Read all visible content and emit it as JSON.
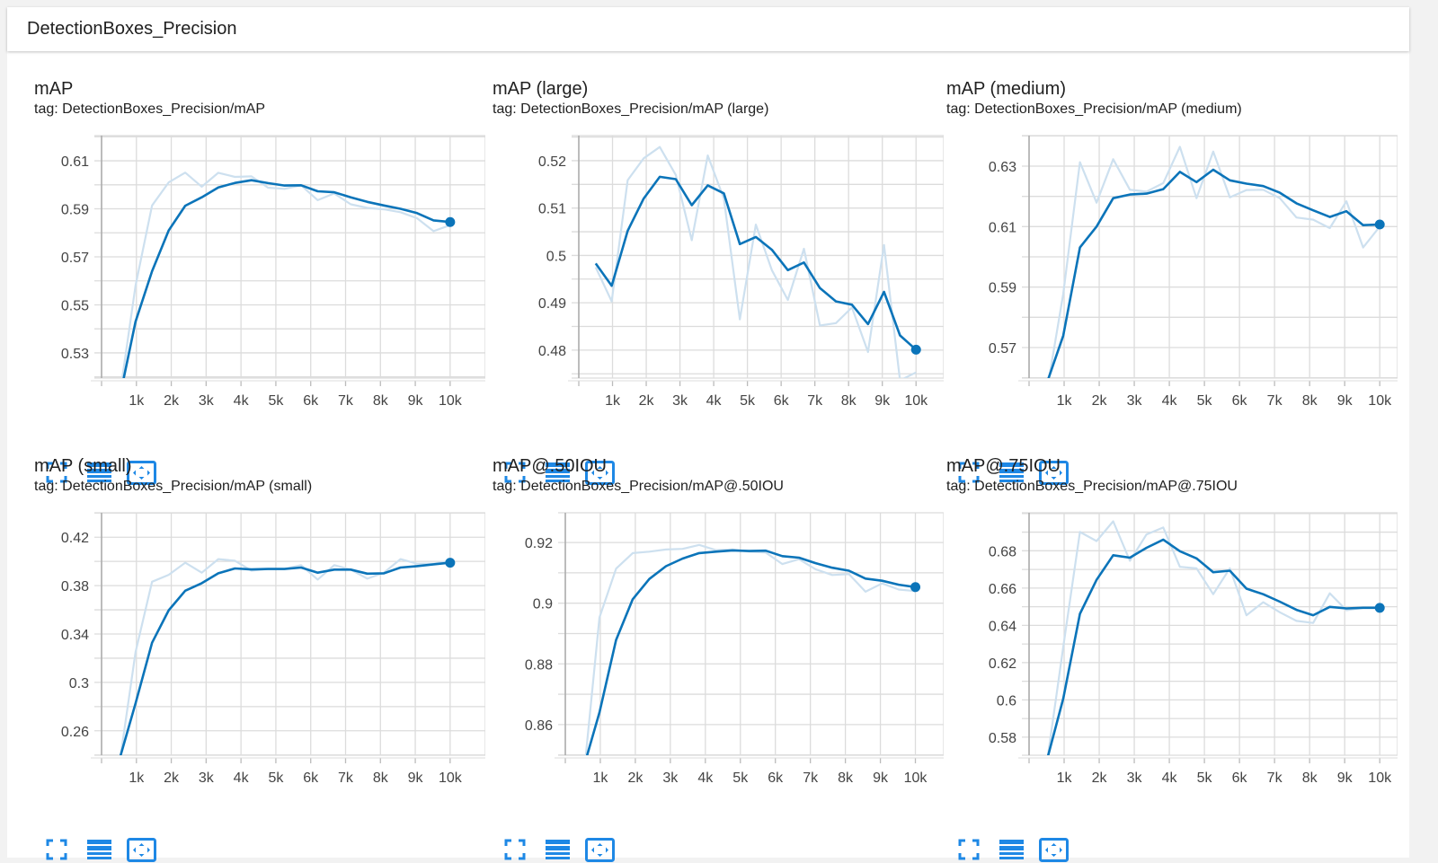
{
  "header": {
    "title": "DetectionBoxes_Precision"
  },
  "colors": {
    "smoothed": "#0b74b9",
    "raw": "#cde0ef",
    "grid": "#dcdcdc",
    "icon": "#1e88e5"
  },
  "icons": [
    "fullscreen-icon",
    "data-table-icon",
    "fit-domain-icon"
  ],
  "chart_data": [
    {
      "type": "line",
      "title": "mAP",
      "tag": "tag: DetectionBoxes_Precision/mAP",
      "x": [
        500,
        975,
        1450,
        1925,
        2400,
        2875,
        3350,
        3825,
        4300,
        4775,
        5250,
        5725,
        6200,
        6675,
        7150,
        7625,
        8100,
        8575,
        9050,
        9525,
        10000
      ],
      "xlim": [
        0,
        10700
      ],
      "ylim": [
        0.5195,
        0.6205
      ],
      "grid_step": 0.01,
      "grid": true,
      "yticks": [
        0.53,
        0.55,
        0.57,
        0.59,
        0.61
      ],
      "ytick_labels": [
        "0.53",
        "0.55",
        "0.57",
        "0.59",
        "0.61"
      ],
      "xticks": [
        1000,
        2000,
        3000,
        4000,
        5000,
        6000,
        7000,
        8000,
        9000,
        10000
      ],
      "xtick_labels": [
        "1k",
        "2k",
        "3k",
        "4k",
        "5k",
        "6k",
        "7k",
        "8k",
        "9k",
        "10k"
      ],
      "series": [
        {
          "role": "raw",
          "values": [
            0.51,
            0.558,
            0.5914,
            0.601,
            0.6051,
            0.5992,
            0.605,
            0.6033,
            0.6035,
            0.5988,
            0.5983,
            0.5998,
            0.5936,
            0.5964,
            0.5919,
            0.5904,
            0.5898,
            0.5886,
            0.5861,
            0.5807,
            0.5832
          ]
        },
        {
          "role": "smoothed",
          "values": [
            0.51,
            0.543,
            0.564,
            0.581,
            0.5913,
            0.5948,
            0.5989,
            0.6008,
            0.6019,
            0.6007,
            0.5997,
            0.5998,
            0.5973,
            0.5969,
            0.5948,
            0.5929,
            0.5914,
            0.59,
            0.5882,
            0.5852,
            0.5845
          ]
        }
      ]
    },
    {
      "type": "line",
      "title": "mAP (large)",
      "tag": "tag: DetectionBoxes_Precision/mAP (large)",
      "x": [
        500,
        975,
        1450,
        1925,
        2400,
        2875,
        3350,
        3825,
        4300,
        4775,
        5250,
        5725,
        6200,
        6675,
        7150,
        7625,
        8100,
        8575,
        9050,
        9525,
        10000
      ],
      "xlim": [
        0,
        10500
      ],
      "ylim": [
        0.4741,
        0.5253
      ],
      "grid_step": 0.005,
      "grid": true,
      "yticks": [
        0.48,
        0.49,
        0.5,
        0.51,
        0.52
      ],
      "ytick_labels": [
        "0.48",
        "0.49",
        "0.5",
        "0.51",
        "0.52"
      ],
      "xticks": [
        1000,
        2000,
        3000,
        4000,
        5000,
        6000,
        7000,
        8000,
        9000,
        10000
      ],
      "xtick_labels": [
        "1k",
        "2k",
        "3k",
        "4k",
        "5k",
        "6k",
        "7k",
        "8k",
        "9k",
        "10k"
      ],
      "series": [
        {
          "role": "raw",
          "values": [
            0.4975,
            0.4903,
            0.5159,
            0.5205,
            0.5229,
            0.517,
            0.5032,
            0.5211,
            0.512,
            0.4865,
            0.5065,
            0.4969,
            0.4906,
            0.5014,
            0.4852,
            0.4857,
            0.489,
            0.4796,
            0.5022,
            0.4736,
            0.4753
          ]
        },
        {
          "role": "smoothed",
          "values": [
            0.4983,
            0.4936,
            0.5052,
            0.512,
            0.5166,
            0.5161,
            0.5106,
            0.5148,
            0.5131,
            0.5024,
            0.5039,
            0.5012,
            0.4969,
            0.4985,
            0.4931,
            0.4903,
            0.4896,
            0.4855,
            0.4923,
            0.4831,
            0.4801
          ]
        }
      ]
    },
    {
      "type": "line",
      "title": "mAP (medium)",
      "tag": "tag: DetectionBoxes_Precision/mAP (medium)",
      "x": [
        500,
        975,
        1450,
        1925,
        2400,
        2875,
        3350,
        3825,
        4300,
        4775,
        5250,
        5725,
        6200,
        6675,
        7150,
        7625,
        8100,
        8575,
        9050,
        9525,
        10000
      ],
      "xlim": [
        0,
        10200
      ],
      "ylim": [
        0.5599,
        0.6401
      ],
      "grid_step": 0.01,
      "grid": true,
      "yticks": [
        0.57,
        0.59,
        0.61,
        0.63
      ],
      "ytick_labels": [
        "0.57",
        "0.59",
        "0.61",
        "0.63"
      ],
      "xticks": [
        1000,
        2000,
        3000,
        4000,
        5000,
        6000,
        7000,
        8000,
        9000,
        10000
      ],
      "xtick_labels": [
        "1k",
        "2k",
        "3k",
        "4k",
        "5k",
        "6k",
        "7k",
        "8k",
        "9k",
        "10k"
      ],
      "series": [
        {
          "role": "raw",
          "values": [
            0.555,
            0.5877,
            0.6313,
            0.6179,
            0.6323,
            0.6222,
            0.6216,
            0.6244,
            0.6364,
            0.6194,
            0.6348,
            0.6197,
            0.6221,
            0.6222,
            0.6194,
            0.613,
            0.6123,
            0.6095,
            0.6184,
            0.6031,
            0.61
          ]
        },
        {
          "role": "smoothed",
          "values": [
            0.558,
            0.5739,
            0.6031,
            0.61,
            0.6194,
            0.6206,
            0.6209,
            0.6224,
            0.6281,
            0.6247,
            0.6288,
            0.6253,
            0.6242,
            0.6234,
            0.6212,
            0.6177,
            0.6154,
            0.6132,
            0.6151,
            0.6105,
            0.6107
          ]
        }
      ]
    },
    {
      "type": "line",
      "title": "mAP (small)",
      "tag": "tag: DetectionBoxes_Precision/mAP (small)",
      "x": [
        500,
        975,
        1450,
        1925,
        2400,
        2875,
        3350,
        3825,
        4300,
        4775,
        5250,
        5725,
        6200,
        6675,
        7150,
        7625,
        8100,
        8575,
        9050,
        9525,
        10000
      ],
      "xlim": [
        0,
        10700
      ],
      "ylim": [
        0.2398,
        0.4402
      ],
      "grid_step": 0.02,
      "grid": true,
      "yticks": [
        0.26,
        0.3,
        0.34,
        0.38,
        0.42
      ],
      "ytick_labels": [
        "0.26",
        "0.3",
        "0.34",
        "0.38",
        "0.42"
      ],
      "xticks": [
        1000,
        2000,
        3000,
        4000,
        5000,
        6000,
        7000,
        8000,
        9000,
        10000
      ],
      "xtick_labels": [
        "1k",
        "2k",
        "3k",
        "4k",
        "5k",
        "6k",
        "7k",
        "8k",
        "9k",
        "10k"
      ],
      "series": [
        {
          "role": "raw",
          "values": [
            0.23,
            0.3249,
            0.3832,
            0.3889,
            0.3989,
            0.3907,
            0.4019,
            0.4006,
            0.3924,
            0.3937,
            0.3937,
            0.3969,
            0.385,
            0.3969,
            0.3932,
            0.3857,
            0.3907,
            0.4019,
            0.3981,
            0.3981,
            0.4006
          ]
        },
        {
          "role": "smoothed",
          "values": [
            0.235,
            0.2826,
            0.3328,
            0.3596,
            0.3758,
            0.382,
            0.3902,
            0.3942,
            0.3934,
            0.3937,
            0.3937,
            0.3949,
            0.3907,
            0.3932,
            0.3932,
            0.3899,
            0.3902,
            0.3949,
            0.3961,
            0.3976,
            0.3989
          ]
        }
      ]
    },
    {
      "type": "line",
      "title": "mAP@.50IOU",
      "tag": "tag: DetectionBoxes_Precision/mAP@.50IOU",
      "x": [
        500,
        975,
        1450,
        1925,
        2400,
        2875,
        3350,
        3825,
        4300,
        4775,
        5250,
        5725,
        6200,
        6675,
        7150,
        7625,
        8100,
        8575,
        9050,
        9525,
        10000
      ],
      "xlim": [
        0,
        10500
      ],
      "ylim": [
        0.8499,
        0.9298
      ],
      "grid_step": 0.01,
      "grid": true,
      "yticks": [
        0.86,
        0.88,
        0.9,
        0.92
      ],
      "ytick_labels": [
        "0.86",
        "0.88",
        "0.9",
        "0.92"
      ],
      "xticks": [
        1000,
        2000,
        3000,
        4000,
        5000,
        6000,
        7000,
        8000,
        9000,
        10000
      ],
      "xtick_labels": [
        "1k",
        "2k",
        "3k",
        "4k",
        "5k",
        "6k",
        "7k",
        "8k",
        "9k",
        "10k"
      ],
      "series": [
        {
          "role": "raw",
          "values": [
            0.84,
            0.8953,
            0.9114,
            0.9165,
            0.917,
            0.9177,
            0.9179,
            0.9192,
            0.9175,
            0.9177,
            0.917,
            0.9167,
            0.9129,
            0.9145,
            0.9112,
            0.9093,
            0.9096,
            0.9038,
            0.9065,
            0.9045,
            0.904
          ]
        },
        {
          "role": "smoothed",
          "values": [
            0.845,
            0.864,
            0.8879,
            0.9013,
            0.908,
            0.9122,
            0.9147,
            0.9165,
            0.917,
            0.9174,
            0.9172,
            0.9173,
            0.9155,
            0.915,
            0.9132,
            0.9117,
            0.9107,
            0.9081,
            0.9074,
            0.9061,
            0.9053
          ]
        }
      ]
    },
    {
      "type": "line",
      "title": "mAP@.75IOU",
      "tag": "tag: DetectionBoxes_Precision/mAP@.75IOU",
      "x": [
        500,
        975,
        1450,
        1925,
        2400,
        2875,
        3350,
        3825,
        4300,
        4775,
        5250,
        5725,
        6200,
        6675,
        7150,
        7625,
        8100,
        8575,
        9050,
        9525,
        10000
      ],
      "xlim": [
        0,
        10200
      ],
      "ylim": [
        0.5703,
        0.7004
      ],
      "grid_step": 0.01,
      "grid": true,
      "yticks": [
        0.58,
        0.6,
        0.62,
        0.64,
        0.66,
        0.68
      ],
      "ytick_labels": [
        "0.58",
        "0.6",
        "0.62",
        "0.64",
        "0.66",
        "0.68"
      ],
      "xticks": [
        1000,
        2000,
        3000,
        4000,
        5000,
        6000,
        7000,
        8000,
        9000,
        10000
      ],
      "xtick_labels": [
        "1k",
        "2k",
        "3k",
        "4k",
        "5k",
        "6k",
        "7k",
        "8k",
        "9k",
        "10k"
      ],
      "series": [
        {
          "role": "raw",
          "values": [
            0.565,
            0.6283,
            0.6901,
            0.6852,
            0.6958,
            0.6746,
            0.6888,
            0.6925,
            0.6714,
            0.6706,
            0.6567,
            0.6706,
            0.6454,
            0.6524,
            0.647,
            0.6424,
            0.6413,
            0.6572,
            0.6481,
            0.6494,
            0.6498
          ]
        },
        {
          "role": "smoothed",
          "values": [
            0.567,
            0.6006,
            0.6462,
            0.6644,
            0.6776,
            0.6763,
            0.6816,
            0.686,
            0.6798,
            0.6759,
            0.6685,
            0.6693,
            0.6597,
            0.6567,
            0.6527,
            0.6483,
            0.6454,
            0.6499,
            0.6491,
            0.6494,
            0.6494
          ]
        }
      ]
    }
  ]
}
